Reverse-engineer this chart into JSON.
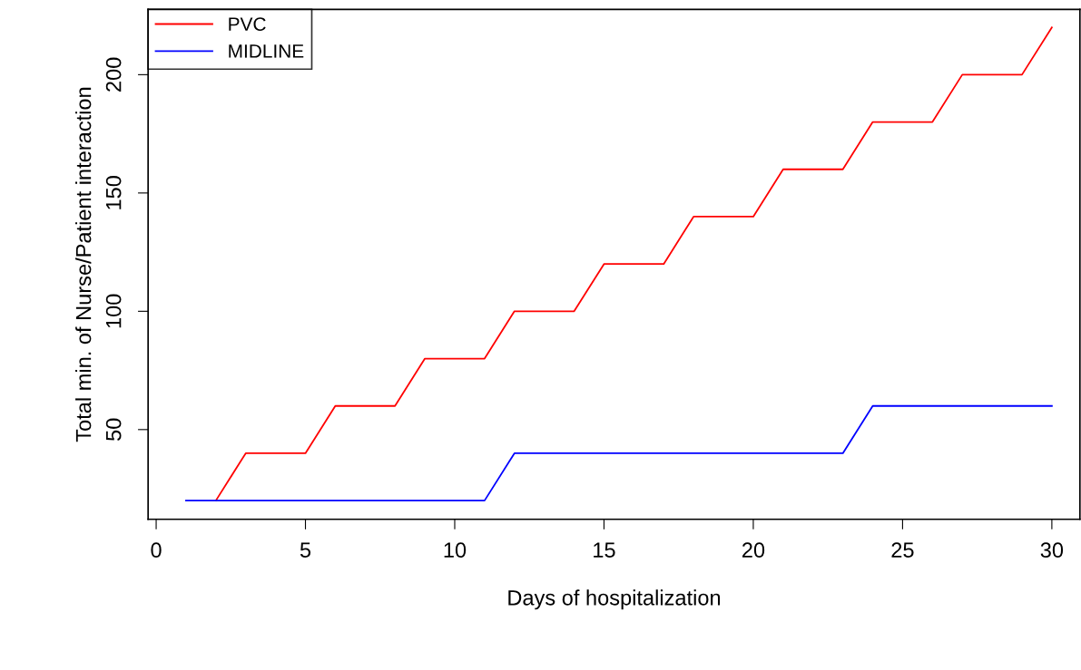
{
  "chart_data": {
    "type": "line",
    "xlabel": "Days of hospitalization",
    "ylabel": "Total min. of Nurse/Patient interaction",
    "x": [
      1,
      2,
      3,
      4,
      5,
      6,
      7,
      8,
      9,
      10,
      11,
      12,
      13,
      14,
      15,
      16,
      17,
      18,
      19,
      20,
      21,
      22,
      23,
      24,
      25,
      26,
      27,
      28,
      29,
      30
    ],
    "series": [
      {
        "name": "PVC",
        "color": "#ff0000",
        "values": [
          null,
          20,
          40,
          40,
          40,
          60,
          60,
          60,
          80,
          80,
          80,
          100,
          100,
          100,
          120,
          120,
          120,
          140,
          140,
          140,
          160,
          160,
          160,
          180,
          180,
          180,
          200,
          200,
          200,
          220
        ]
      },
      {
        "name": "MIDLINE",
        "color": "#0000ff",
        "values": [
          20,
          20,
          20,
          20,
          20,
          20,
          20,
          20,
          20,
          20,
          20,
          40,
          40,
          40,
          40,
          40,
          40,
          40,
          40,
          40,
          40,
          40,
          40,
          60,
          60,
          60,
          60,
          60,
          60,
          60
        ]
      }
    ],
    "xlim": [
      -0.27,
      30.94
    ],
    "ylim": [
      12.1,
      227.6
    ],
    "xticks": [
      0,
      5,
      10,
      15,
      20,
      25,
      30
    ],
    "yticks": [
      50,
      100,
      150,
      200
    ],
    "grid": false,
    "legend": "top left",
    "marker": "none",
    "line_style": "solid"
  }
}
